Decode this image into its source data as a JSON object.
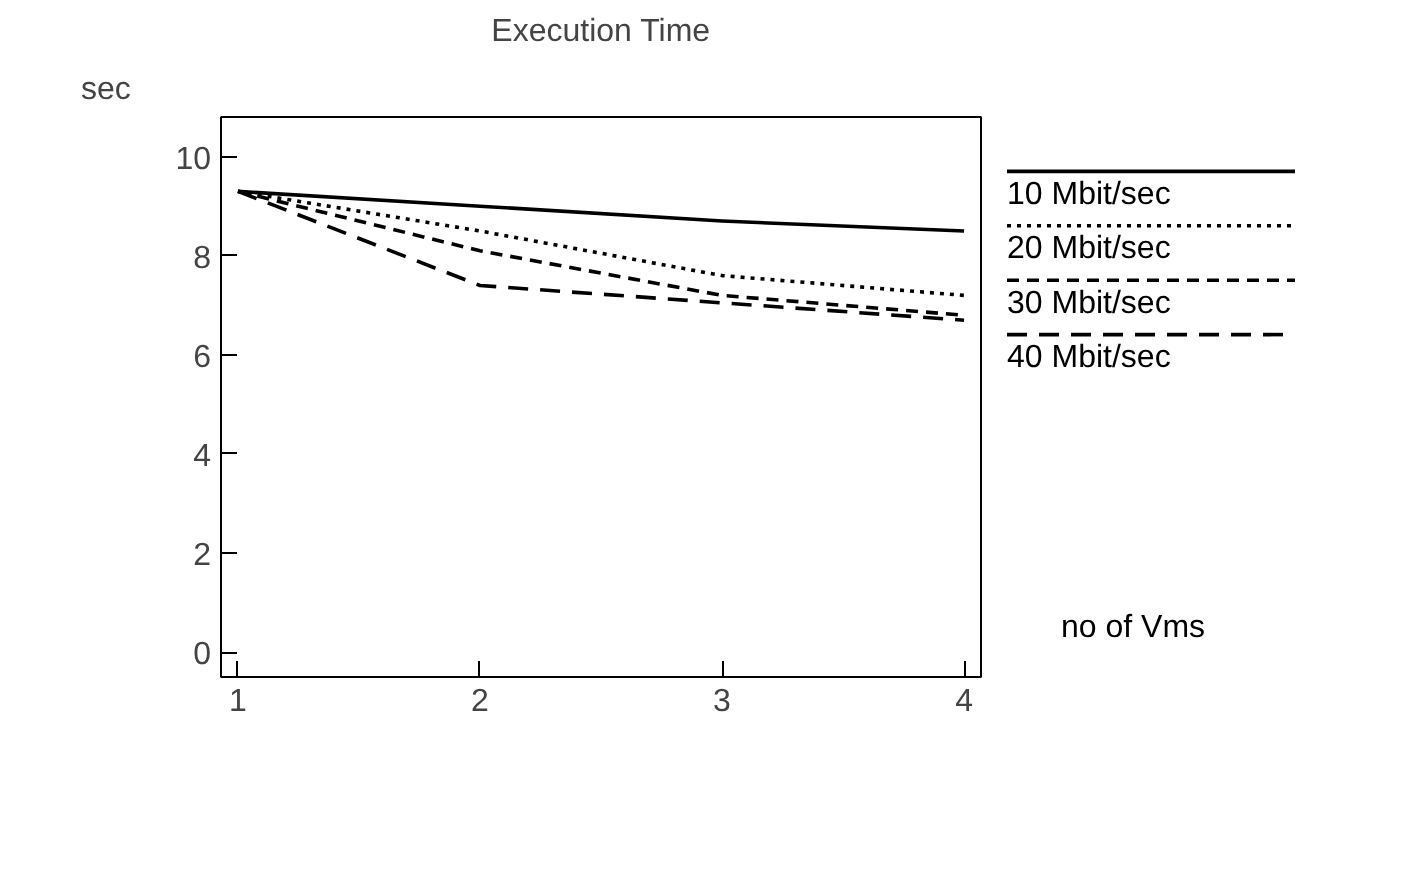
{
  "chart_data": {
    "type": "line",
    "title": "Execution Time",
    "xlabel": "no of Vms",
    "ylabel": "sec",
    "x": [
      1,
      2,
      3,
      4
    ],
    "series": [
      {
        "name": "10 Mbit/sec",
        "color": "#000000",
        "line_style": "solid",
        "values": [
          9.3,
          9.0,
          8.7,
          8.5
        ]
      },
      {
        "name": "20 Mbit/sec",
        "color": "#000000",
        "line_style": "dotted",
        "values": [
          9.3,
          8.5,
          7.6,
          7.2
        ]
      },
      {
        "name": "30 Mbit/sec",
        "color": "#000000",
        "line_style": "dashed",
        "values": [
          9.3,
          8.1,
          7.2,
          6.8
        ]
      },
      {
        "name": "40 Mbit/sec",
        "color": "#000000",
        "line_style": "longdash",
        "values": [
          9.3,
          7.4,
          7.05,
          6.7
        ]
      }
    ],
    "xlim": [
      0.93,
      4.07
    ],
    "ylim": [
      -0.5,
      10.8
    ],
    "xticks": [
      1,
      2,
      3,
      4
    ],
    "yticks": [
      0,
      2,
      4,
      6,
      8,
      10
    ],
    "grid": false,
    "legend": "right",
    "marker": "none"
  }
}
